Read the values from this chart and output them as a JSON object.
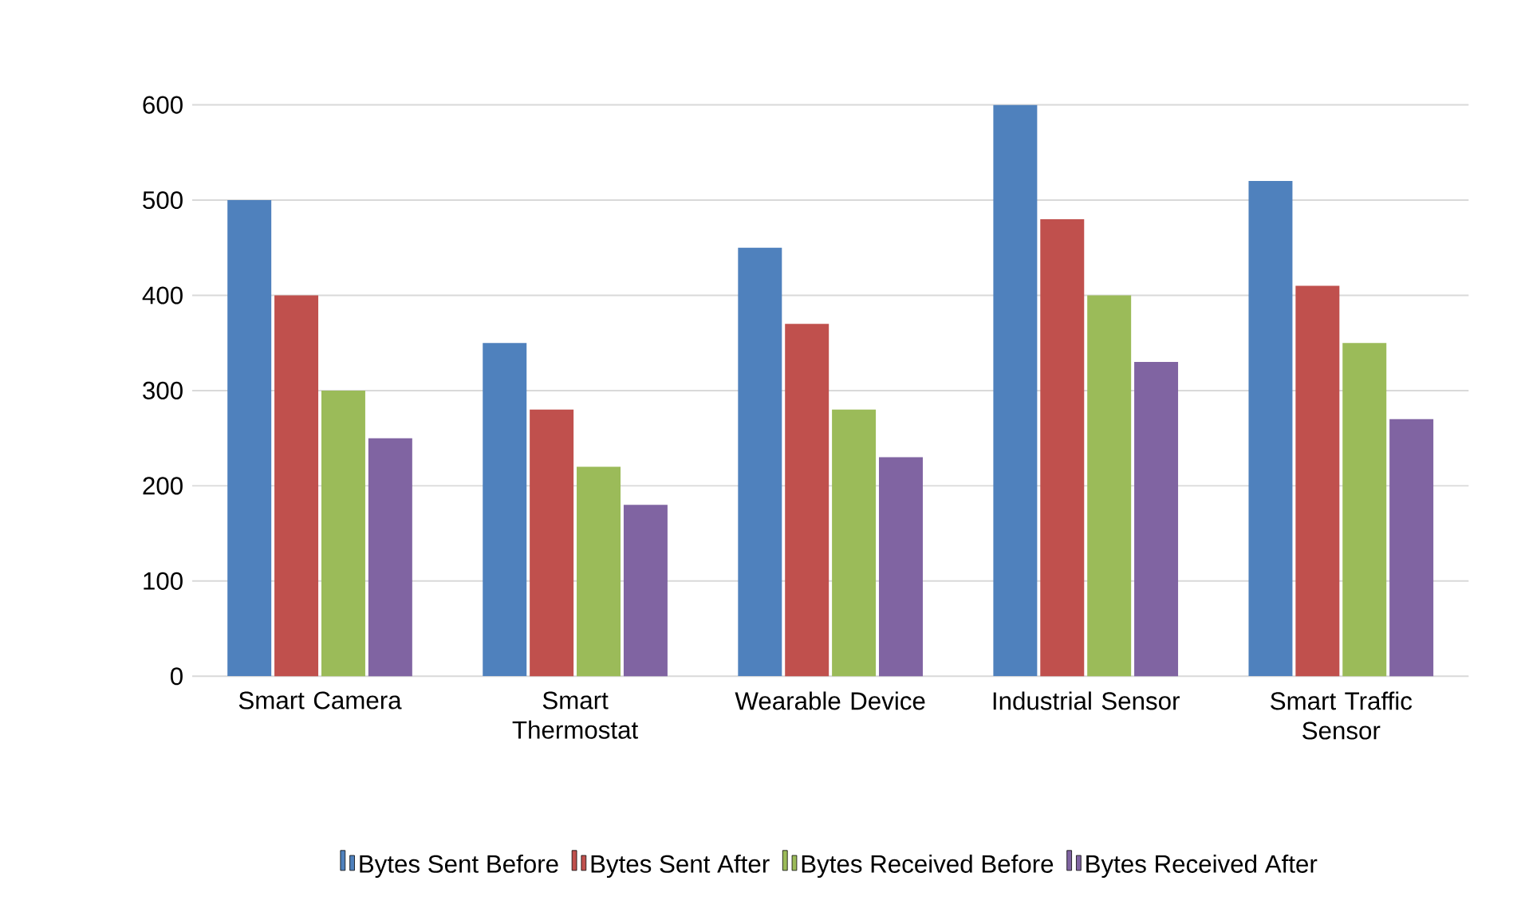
{
  "chart_data": {
    "type": "bar",
    "categories": [
      "Smart Camera",
      "Smart Thermostat",
      "Wearable Device",
      "Industrial Sensor",
      "Smart Traffic Sensor"
    ],
    "series": [
      {
        "name": "Bytes Sent Before",
        "color": "#4f81bd",
        "values": [
          500,
          350,
          450,
          600,
          520
        ]
      },
      {
        "name": "Bytes Sent After",
        "color": "#c0504d",
        "values": [
          400,
          280,
          370,
          480,
          410
        ]
      },
      {
        "name": "Bytes Received Before",
        "color": "#9bbb59",
        "values": [
          300,
          220,
          280,
          400,
          350
        ]
      },
      {
        "name": "Bytes Received After",
        "color": "#8064a2",
        "values": [
          250,
          180,
          230,
          330,
          270
        ]
      }
    ],
    "ylim": [
      0,
      600
    ],
    "yticks": [
      0,
      100,
      200,
      300,
      400,
      500,
      600
    ],
    "grid": "y",
    "legend": "bottom"
  }
}
